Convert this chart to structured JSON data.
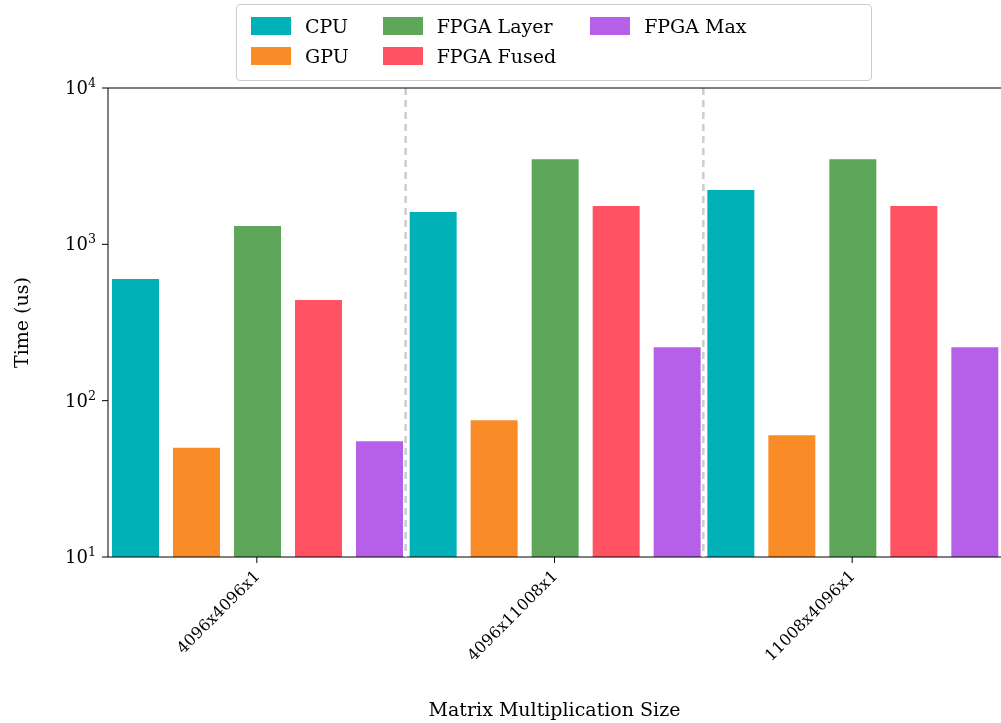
{
  "chart_data": {
    "type": "bar",
    "xlabel": "Matrix Multiplication Size",
    "ylabel": "Time (us)",
    "categories": [
      "4096x4096x1",
      "4096x11008x1",
      "11008x4096x1"
    ],
    "series": [
      {
        "name": "CPU",
        "color": "#00b2b8",
        "values": [
          600,
          1610,
          2230
        ]
      },
      {
        "name": "GPU",
        "color": "#fa8c28",
        "values": [
          50,
          75,
          60
        ]
      },
      {
        "name": "FPGA Layer",
        "color": "#5ea65a",
        "values": [
          1310,
          3500,
          3500
        ]
      },
      {
        "name": "FPGA Fused",
        "color": "#ff5364",
        "values": [
          440,
          1760,
          1760
        ]
      },
      {
        "name": "FPGA Max",
        "color": "#b660ea",
        "values": [
          55,
          220,
          220
        ]
      }
    ],
    "log": "y",
    "ylim": [
      10,
      10000
    ],
    "yticks": [
      {
        "value": 10,
        "label": "10$^{1}$"
      },
      {
        "value": 100,
        "label": "10$^{2}$"
      },
      {
        "value": 1000,
        "label": "10$^{3}$"
      },
      {
        "value": 10000,
        "label": "10$^{4}$"
      }
    ],
    "legend": "top"
  }
}
